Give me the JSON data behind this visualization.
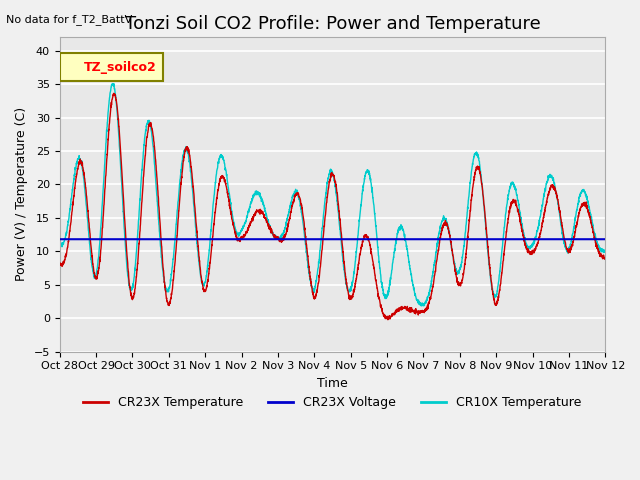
{
  "title": "Tonzi Soil CO2 Profile: Power and Temperature",
  "top_left_text": "No data for f_T2_BattV",
  "ylabel": "Power (V) / Temperature (C)",
  "xlabel": "Time",
  "ylim": [
    -5,
    42
  ],
  "yticks": [
    -5,
    0,
    5,
    10,
    15,
    20,
    25,
    30,
    35,
    40
  ],
  "legend_box_label": "TZ_soilco2",
  "legend_box_color": "#FFFFC0",
  "legend_box_edge": "#808000",
  "background_color": "#E8E8E8",
  "grid_color": "#FFFFFF",
  "cr23x_color": "#CC0000",
  "cr10x_color": "#00CCCC",
  "voltage_color": "#0000CC",
  "voltage_value": 11.8,
  "x_tick_labels": [
    "Oct 28",
    "Oct 29",
    "Oct 30",
    "Oct 31",
    "Nov 1",
    "Nov 2",
    "Nov 3",
    "Nov 4",
    "Nov 5",
    "Nov 6",
    "Nov 7",
    "Nov 8",
    "Nov 9",
    "Nov 10",
    "Nov 11",
    "Nov 12"
  ],
  "x_tick_positions": [
    0,
    1,
    2,
    3,
    4,
    5,
    6,
    7,
    8,
    9,
    10,
    11,
    12,
    13,
    14,
    15
  ],
  "title_fontsize": 13,
  "label_fontsize": 9,
  "tick_fontsize": 8
}
